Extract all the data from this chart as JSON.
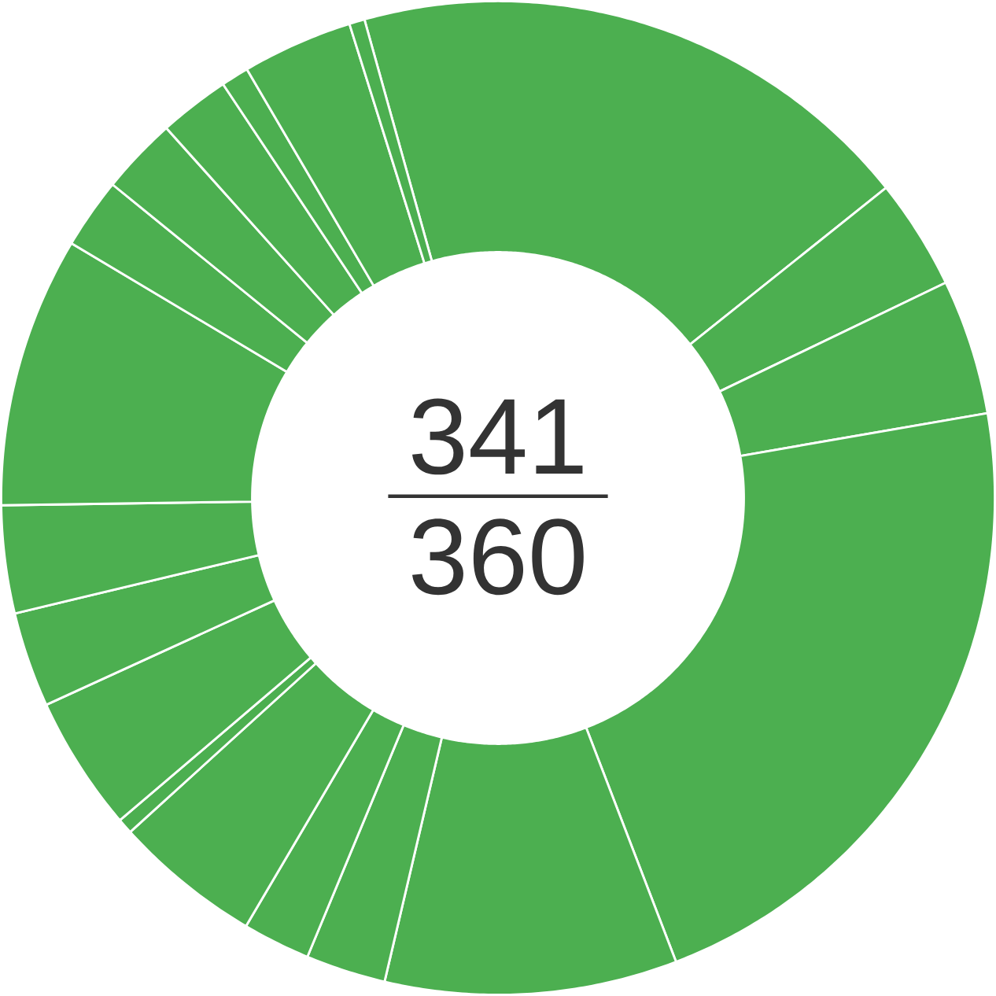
{
  "chart_data": {
    "type": "donut",
    "categories": [
      null,
      null,
      null,
      null,
      null,
      null,
      null,
      null,
      null,
      null,
      null,
      null,
      null,
      null,
      null,
      null,
      null,
      null,
      null
    ],
    "values": [
      18.6,
      3.6,
      4.4,
      21.9,
      9.5,
      2.6,
      2.2,
      4.8,
      0.5,
      4.4,
      3.1,
      3.5,
      8.8,
      2.3,
      2.5,
      2.3,
      0.9,
      3.6,
      0.5
    ],
    "colors": [
      "#4caf50",
      "#4caf50",
      "#4caf50",
      "#4caf50",
      "#4caf50",
      "#4caf50",
      "#4caf50",
      "#4caf50",
      "#4caf50",
      "#4caf50",
      "#4caf50",
      "#4caf50",
      "#4caf50",
      "#4caf50",
      "#4caf50",
      "#4caf50",
      "#4caf50",
      "#4caf50",
      "#4caf50"
    ],
    "annotations": [
      "341",
      "360"
    ]
  }
}
